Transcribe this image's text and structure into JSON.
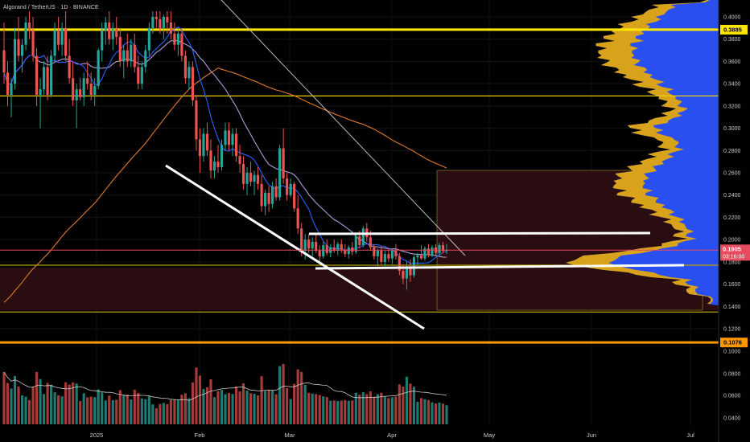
{
  "chart_data": {
    "type": "candlestick",
    "title": "Algorand / TetherUS · 1D · BINANCE",
    "x_labels": [
      "2025",
      "Feb",
      "Mar",
      "Apr",
      "May",
      "Jun",
      "Jul"
    ],
    "price_axis": {
      "min": 0.12,
      "max": 0.4,
      "ticks": [
        "0.4000",
        "0.3800",
        "0.3600",
        "0.3400",
        "0.3200",
        "0.3000",
        "0.2800",
        "0.2600",
        "0.2400",
        "0.2200",
        "0.2000",
        "0.1800",
        "0.1600",
        "0.1400",
        "0.1200"
      ]
    },
    "volume_axis": {
      "ticks": [
        "0.1000",
        "0.0800",
        "0.0600",
        "0.0400"
      ]
    },
    "last_price": {
      "value": "0.1905",
      "countdown": "03:16:00",
      "color": "#e84a5f"
    },
    "price_levels": [
      {
        "value": "0.3885",
        "color": "#ffe600",
        "label": true
      },
      {
        "value": "0.1076",
        "color": "#ff9800",
        "label": true
      }
    ],
    "horizontal_lines": [
      {
        "price": 0.329,
        "color": "#e6d200"
      },
      {
        "price": 0.177,
        "color": "#b8a200"
      },
      {
        "price": 0.135,
        "color": "#b8a200"
      }
    ],
    "colors": {
      "up": "#26a69a",
      "down": "#ef5350",
      "ma_fast": "#2962ff",
      "ma_mid": "#b39ddb",
      "ma_slow": "#e07a2c",
      "profile_main": "#2a4ff0",
      "profile_value": "#d9a21b",
      "zone": "#2a0d10",
      "trendline": "#ffffff"
    },
    "ohlc": [
      [
        0.37,
        0.395,
        0.34,
        0.35
      ],
      [
        0.35,
        0.36,
        0.32,
        0.33
      ],
      [
        0.33,
        0.345,
        0.31,
        0.34
      ],
      [
        0.34,
        0.39,
        0.335,
        0.38
      ],
      [
        0.38,
        0.4,
        0.36,
        0.365
      ],
      [
        0.365,
        0.38,
        0.35,
        0.375
      ],
      [
        0.375,
        0.4,
        0.37,
        0.395
      ],
      [
        0.395,
        0.405,
        0.38,
        0.388
      ],
      [
        0.388,
        0.4,
        0.36,
        0.365
      ],
      [
        0.365,
        0.372,
        0.32,
        0.33
      ],
      [
        0.33,
        0.345,
        0.3,
        0.335
      ],
      [
        0.335,
        0.36,
        0.33,
        0.355
      ],
      [
        0.355,
        0.365,
        0.325,
        0.33
      ],
      [
        0.33,
        0.37,
        0.328,
        0.365
      ],
      [
        0.365,
        0.395,
        0.36,
        0.388
      ],
      [
        0.388,
        0.4,
        0.37,
        0.375
      ],
      [
        0.375,
        0.395,
        0.365,
        0.39
      ],
      [
        0.39,
        0.405,
        0.36,
        0.365
      ],
      [
        0.365,
        0.38,
        0.34,
        0.345
      ],
      [
        0.345,
        0.36,
        0.32,
        0.325
      ],
      [
        0.325,
        0.34,
        0.3,
        0.335
      ],
      [
        0.335,
        0.345,
        0.325,
        0.328
      ],
      [
        0.328,
        0.35,
        0.32,
        0.345
      ],
      [
        0.345,
        0.36,
        0.335,
        0.34
      ],
      [
        0.34,
        0.35,
        0.325,
        0.33
      ],
      [
        0.33,
        0.345,
        0.32,
        0.338
      ],
      [
        0.338,
        0.372,
        0.335,
        0.37
      ],
      [
        0.37,
        0.395,
        0.36,
        0.388
      ],
      [
        0.388,
        0.4,
        0.375,
        0.395
      ],
      [
        0.395,
        0.405,
        0.375,
        0.38
      ],
      [
        0.38,
        0.395,
        0.37,
        0.39
      ],
      [
        0.39,
        0.4,
        0.375,
        0.382
      ],
      [
        0.382,
        0.39,
        0.355,
        0.36
      ],
      [
        0.36,
        0.375,
        0.345,
        0.37
      ],
      [
        0.37,
        0.385,
        0.355,
        0.36
      ],
      [
        0.36,
        0.38,
        0.355,
        0.375
      ],
      [
        0.375,
        0.385,
        0.35,
        0.355
      ],
      [
        0.355,
        0.365,
        0.335,
        0.34
      ],
      [
        0.34,
        0.36,
        0.335,
        0.355
      ],
      [
        0.355,
        0.375,
        0.35,
        0.37
      ],
      [
        0.37,
        0.395,
        0.365,
        0.39
      ],
      [
        0.39,
        0.405,
        0.385,
        0.4
      ],
      [
        0.4,
        0.405,
        0.39,
        0.398
      ],
      [
        0.398,
        0.405,
        0.385,
        0.39
      ],
      [
        0.39,
        0.402,
        0.38,
        0.4
      ],
      [
        0.4,
        0.405,
        0.385,
        0.395
      ],
      [
        0.395,
        0.405,
        0.38,
        0.385
      ],
      [
        0.385,
        0.395,
        0.37,
        0.375
      ],
      [
        0.375,
        0.39,
        0.365,
        0.385
      ],
      [
        0.385,
        0.39,
        0.36,
        0.365
      ],
      [
        0.365,
        0.37,
        0.34,
        0.345
      ],
      [
        0.345,
        0.36,
        0.335,
        0.355
      ],
      [
        0.355,
        0.36,
        0.32,
        0.325
      ],
      [
        0.325,
        0.33,
        0.28,
        0.29
      ],
      [
        0.29,
        0.3,
        0.26,
        0.275
      ],
      [
        0.275,
        0.3,
        0.27,
        0.295
      ],
      [
        0.295,
        0.305,
        0.275,
        0.28
      ],
      [
        0.28,
        0.29,
        0.255,
        0.262
      ],
      [
        0.262,
        0.275,
        0.255,
        0.27
      ],
      [
        0.27,
        0.285,
        0.26,
        0.265
      ],
      [
        0.265,
        0.29,
        0.262,
        0.285
      ],
      [
        0.285,
        0.305,
        0.28,
        0.298
      ],
      [
        0.298,
        0.305,
        0.28,
        0.285
      ],
      [
        0.285,
        0.3,
        0.275,
        0.295
      ],
      [
        0.295,
        0.3,
        0.27,
        0.275
      ],
      [
        0.275,
        0.285,
        0.26,
        0.268
      ],
      [
        0.268,
        0.275,
        0.245,
        0.25
      ],
      [
        0.25,
        0.265,
        0.24,
        0.26
      ],
      [
        0.26,
        0.27,
        0.248,
        0.252
      ],
      [
        0.252,
        0.262,
        0.24,
        0.258
      ],
      [
        0.258,
        0.265,
        0.245,
        0.25
      ],
      [
        0.25,
        0.258,
        0.225,
        0.23
      ],
      [
        0.23,
        0.245,
        0.222,
        0.242
      ],
      [
        0.242,
        0.248,
        0.225,
        0.232
      ],
      [
        0.232,
        0.252,
        0.228,
        0.248
      ],
      [
        0.248,
        0.255,
        0.235,
        0.238
      ],
      [
        0.238,
        0.285,
        0.235,
        0.282
      ],
      [
        0.282,
        0.3,
        0.25,
        0.255
      ],
      [
        0.255,
        0.26,
        0.235,
        0.24
      ],
      [
        0.24,
        0.255,
        0.238,
        0.25
      ],
      [
        0.25,
        0.252,
        0.225,
        0.228
      ],
      [
        0.228,
        0.24,
        0.205,
        0.21
      ],
      [
        0.21,
        0.215,
        0.185,
        0.19
      ],
      [
        0.19,
        0.205,
        0.182,
        0.2
      ],
      [
        0.2,
        0.205,
        0.188,
        0.192
      ],
      [
        0.192,
        0.202,
        0.185,
        0.198
      ],
      [
        0.198,
        0.204,
        0.188,
        0.19
      ],
      [
        0.19,
        0.195,
        0.18,
        0.185
      ],
      [
        0.185,
        0.198,
        0.183,
        0.195
      ],
      [
        0.195,
        0.2,
        0.186,
        0.188
      ],
      [
        0.188,
        0.196,
        0.184,
        0.193
      ],
      [
        0.193,
        0.2,
        0.188,
        0.19
      ],
      [
        0.19,
        0.198,
        0.186,
        0.196
      ],
      [
        0.196,
        0.2,
        0.188,
        0.191
      ],
      [
        0.191,
        0.196,
        0.184,
        0.187
      ],
      [
        0.187,
        0.195,
        0.183,
        0.193
      ],
      [
        0.193,
        0.198,
        0.186,
        0.189
      ],
      [
        0.189,
        0.205,
        0.187,
        0.203
      ],
      [
        0.203,
        0.208,
        0.192,
        0.195
      ],
      [
        0.195,
        0.212,
        0.193,
        0.21
      ],
      [
        0.21,
        0.215,
        0.198,
        0.202
      ],
      [
        0.202,
        0.208,
        0.19,
        0.193
      ],
      [
        0.193,
        0.196,
        0.182,
        0.185
      ],
      [
        0.185,
        0.192,
        0.176,
        0.19
      ],
      [
        0.19,
        0.194,
        0.178,
        0.18
      ],
      [
        0.18,
        0.19,
        0.176,
        0.187
      ],
      [
        0.187,
        0.193,
        0.18,
        0.183
      ],
      [
        0.183,
        0.192,
        0.178,
        0.19
      ],
      [
        0.19,
        0.196,
        0.182,
        0.185
      ],
      [
        0.185,
        0.188,
        0.168,
        0.172
      ],
      [
        0.172,
        0.178,
        0.16,
        0.165
      ],
      [
        0.165,
        0.18,
        0.155,
        0.176
      ],
      [
        0.176,
        0.182,
        0.162,
        0.168
      ],
      [
        0.168,
        0.186,
        0.166,
        0.184
      ],
      [
        0.184,
        0.188,
        0.177,
        0.186
      ],
      [
        0.186,
        0.195,
        0.182,
        0.183
      ],
      [
        0.183,
        0.194,
        0.181,
        0.192
      ],
      [
        0.192,
        0.196,
        0.184,
        0.186
      ],
      [
        0.186,
        0.195,
        0.184,
        0.193
      ],
      [
        0.193,
        0.196,
        0.186,
        0.188
      ],
      [
        0.188,
        0.197,
        0.186,
        0.195
      ],
      [
        0.195,
        0.198,
        0.188,
        0.19
      ],
      [
        0.19,
        0.196,
        0.187,
        0.1905
      ]
    ]
  }
}
